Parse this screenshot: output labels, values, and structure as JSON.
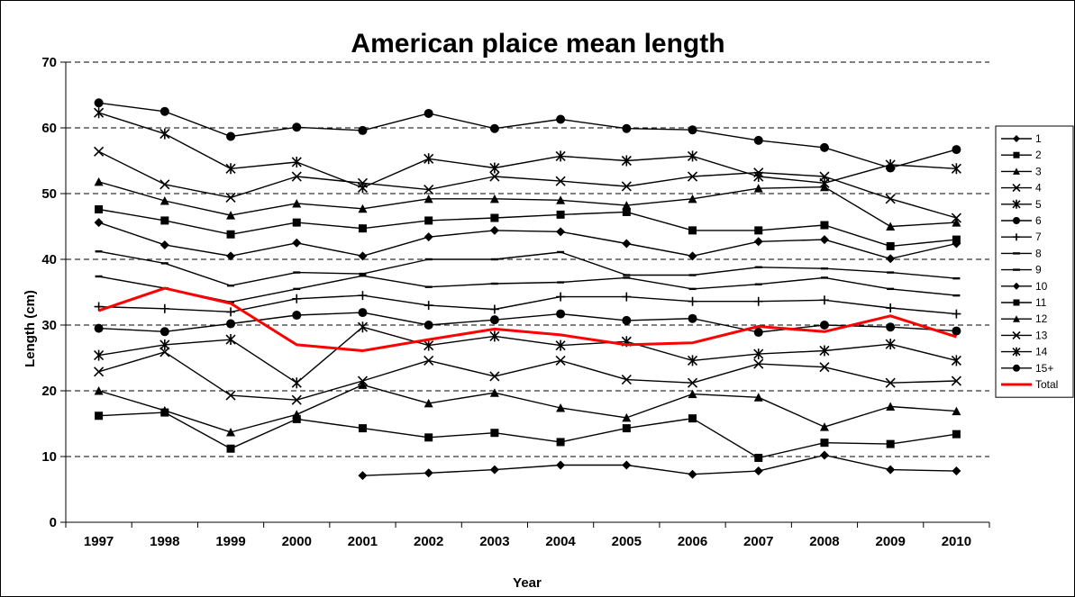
{
  "chart_data": {
    "type": "line",
    "title": "American plaice mean length",
    "xlabel": "Year",
    "ylabel": "Length (cm)",
    "x": [
      1997,
      1998,
      1999,
      2000,
      2001,
      2002,
      2003,
      2004,
      2005,
      2006,
      2007,
      2008,
      2009,
      2010
    ],
    "ylim": [
      0,
      70
    ],
    "yticks": [
      0,
      10,
      20,
      30,
      40,
      50,
      60,
      70
    ],
    "grid": "horizontal dashed",
    "legend_position": "right",
    "series": [
      {
        "name": "1",
        "marker": "diamond",
        "color": "#000000",
        "values": [
          null,
          null,
          null,
          null,
          7.1,
          7.5,
          8.0,
          8.7,
          8.7,
          7.3,
          7.8,
          10.2,
          8.0,
          7.8
        ]
      },
      {
        "name": "2",
        "marker": "square",
        "color": "#000000",
        "values": [
          16.2,
          16.7,
          11.2,
          15.7,
          14.3,
          12.9,
          13.6,
          12.2,
          14.3,
          15.8,
          9.8,
          12.1,
          11.9,
          13.4
        ]
      },
      {
        "name": "3",
        "marker": "triangle",
        "color": "#000000",
        "values": [
          20.0,
          17.0,
          13.7,
          16.4,
          20.9,
          18.1,
          19.7,
          17.4,
          15.9,
          19.5,
          19.0,
          14.5,
          17.6,
          16.9
        ]
      },
      {
        "name": "4",
        "marker": "x",
        "color": "#000000",
        "values": [
          22.9,
          25.9,
          19.3,
          18.6,
          21.5,
          24.6,
          22.2,
          24.6,
          21.7,
          21.2,
          24.1,
          23.6,
          21.2,
          21.5
        ]
      },
      {
        "name": "5",
        "marker": "star",
        "color": "#000000",
        "values": [
          25.4,
          27.0,
          27.8,
          21.2,
          29.7,
          26.9,
          28.3,
          26.9,
          27.5,
          24.6,
          25.6,
          26.1,
          27.1,
          24.6
        ]
      },
      {
        "name": "6",
        "marker": "circle",
        "color": "#000000",
        "values": [
          29.5,
          29.0,
          30.2,
          31.5,
          31.9,
          30.0,
          30.8,
          31.7,
          30.7,
          31.0,
          28.9,
          30.0,
          29.7,
          29.1
        ]
      },
      {
        "name": "7",
        "marker": "plus",
        "color": "#000000",
        "values": [
          32.8,
          32.5,
          32.0,
          34.0,
          34.5,
          33.0,
          32.4,
          34.3,
          34.3,
          33.6,
          33.6,
          33.8,
          32.6,
          31.7
        ]
      },
      {
        "name": "8",
        "marker": "dash",
        "color": "#000000",
        "values": [
          37.4,
          35.6,
          33.5,
          35.5,
          37.5,
          35.8,
          36.3,
          36.5,
          37.2,
          35.5,
          36.2,
          37.2,
          35.5,
          34.5
        ]
      },
      {
        "name": "9",
        "marker": "dash",
        "color": "#000000",
        "values": [
          41.2,
          39.4,
          36.0,
          38.0,
          37.8,
          40.0,
          40.0,
          41.1,
          37.6,
          37.6,
          38.8,
          38.6,
          38.0,
          37.1
        ]
      },
      {
        "name": "10",
        "marker": "diamond",
        "color": "#000000",
        "values": [
          45.6,
          42.2,
          40.5,
          42.5,
          40.5,
          43.4,
          44.4,
          44.2,
          42.4,
          40.5,
          42.7,
          43.0,
          40.1,
          42.4
        ]
      },
      {
        "name": "11",
        "marker": "square",
        "color": "#000000",
        "values": [
          47.6,
          45.9,
          43.8,
          45.6,
          44.7,
          45.9,
          46.3,
          46.8,
          47.2,
          44.4,
          44.4,
          45.2,
          42.0,
          43.0
        ]
      },
      {
        "name": "12",
        "marker": "triangle",
        "color": "#000000",
        "values": [
          51.8,
          48.9,
          46.7,
          48.5,
          47.7,
          49.2,
          49.2,
          49.0,
          48.2,
          49.2,
          50.8,
          51.0,
          45.0,
          45.6
        ]
      },
      {
        "name": "13",
        "marker": "x",
        "color": "#000000",
        "values": [
          56.4,
          51.4,
          49.4,
          52.6,
          51.6,
          50.6,
          52.6,
          51.9,
          51.1,
          52.6,
          53.2,
          52.6,
          49.2,
          46.3
        ]
      },
      {
        "name": "14",
        "marker": "star",
        "color": "#000000",
        "values": [
          62.3,
          59.1,
          53.8,
          54.8,
          50.9,
          55.3,
          53.9,
          55.7,
          55.0,
          55.7,
          52.6,
          51.6,
          54.4,
          53.8
        ]
      },
      {
        "name": "15+",
        "marker": "circle",
        "color": "#000000",
        "values": [
          63.8,
          62.5,
          58.7,
          60.1,
          59.6,
          62.2,
          59.9,
          61.3,
          59.9,
          59.7,
          58.1,
          57.0,
          53.9,
          56.7
        ]
      },
      {
        "name": "Total",
        "marker": "none",
        "color": "#ff0000",
        "values": [
          32.2,
          35.6,
          33.3,
          27.0,
          26.1,
          27.8,
          29.4,
          28.5,
          27.0,
          27.3,
          29.8,
          29.0,
          31.4,
          28.2
        ]
      }
    ]
  }
}
